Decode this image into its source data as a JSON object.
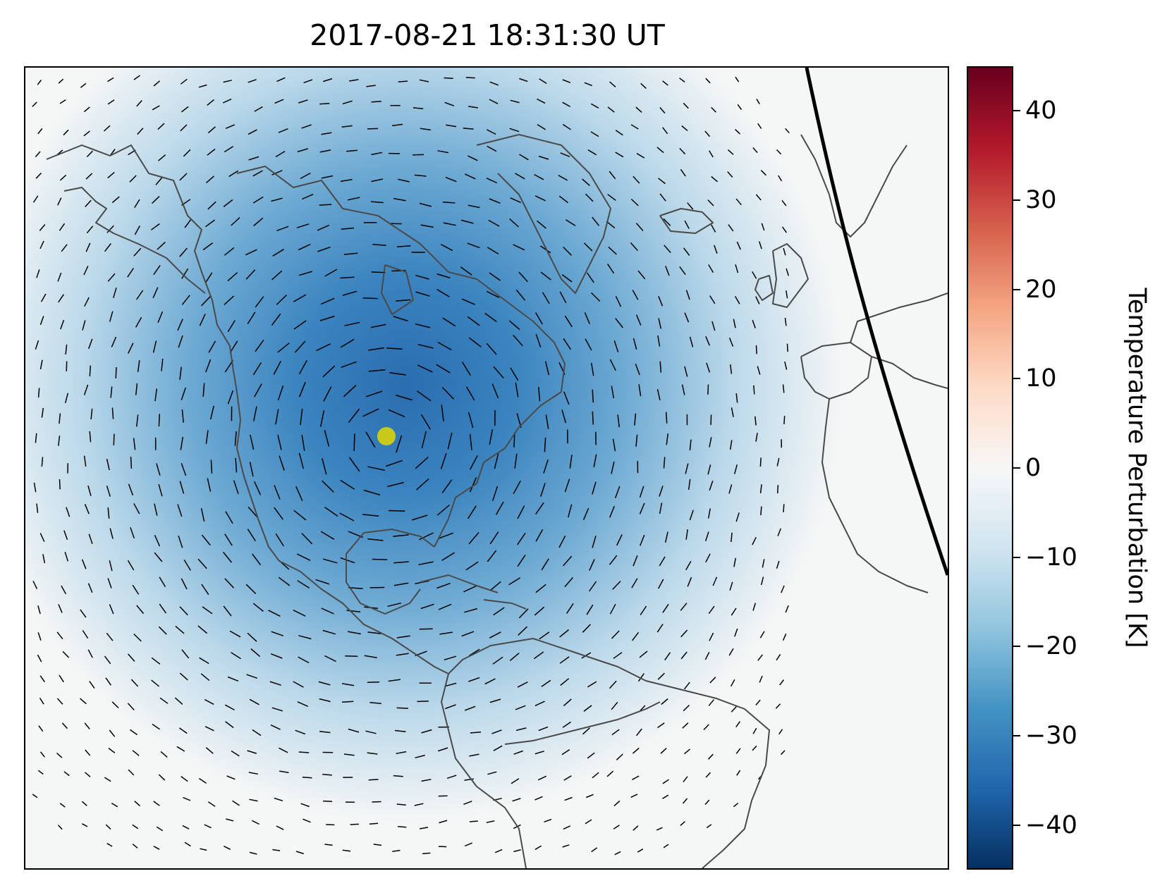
{
  "title": "2017-08-21 18:31:30 UT",
  "map": {
    "type": "geographic-map",
    "region": "North Atlantic / Americas",
    "projection": "orthographic",
    "field": "temperature perturbation",
    "marker": {
      "name": "yellow-dot",
      "color": "#c9c91a",
      "lon": -88,
      "lat": 37
    },
    "features": [
      "coastlines",
      "perturbation vectors",
      "terminator line"
    ],
    "colors": {
      "coastline": "#4a4a4a",
      "background": "#f5f6f6",
      "terminator": "#000000"
    }
  },
  "colorbar": {
    "label": "Temperature Perturbation [K]",
    "min": -45,
    "max": 45,
    "colormap": "RdBu_r",
    "ticks": [
      {
        "value": 40,
        "label": "40"
      },
      {
        "value": 30,
        "label": "30"
      },
      {
        "value": 20,
        "label": "20"
      },
      {
        "value": 10,
        "label": "10"
      },
      {
        "value": 0,
        "label": "0"
      },
      {
        "value": -10,
        "label": "−10"
      },
      {
        "value": -20,
        "label": "−20"
      },
      {
        "value": -30,
        "label": "−30"
      },
      {
        "value": -40,
        "label": "−40"
      }
    ],
    "stops": [
      "#053061",
      "#2166ac",
      "#4393c3",
      "#92c5de",
      "#d1e5f0",
      "#f7f7f7",
      "#fddbc7",
      "#f4a582",
      "#d6604d",
      "#b2182b",
      "#67001f"
    ]
  }
}
